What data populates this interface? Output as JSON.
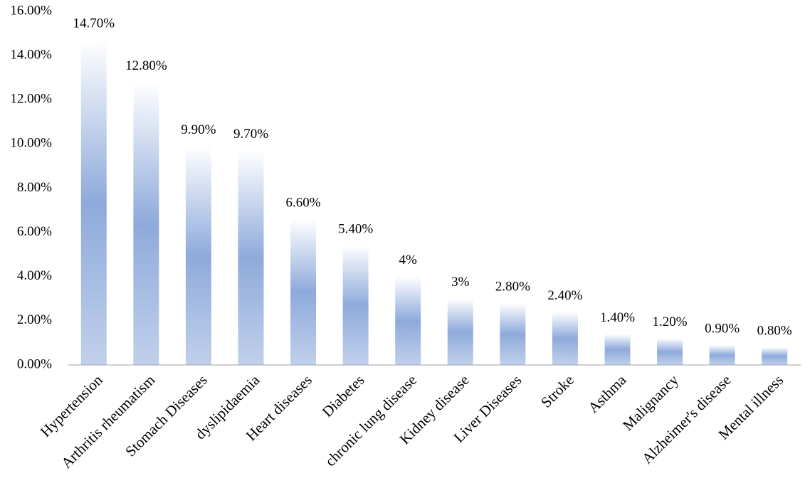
{
  "chart_data": {
    "type": "bar",
    "categories": [
      "Hypertension",
      "Arthritis rheumatism",
      "Stomach Diseases",
      "dyslipidaemia",
      "Heart diseases",
      "Diabetes",
      "chronic lung disease",
      "Kidney disease",
      "Liver Diseases",
      "Stroke",
      "Asthma",
      "Malignancy",
      "Alzheimer's disease",
      "Mental illness"
    ],
    "values": [
      14.7,
      12.8,
      9.9,
      9.7,
      6.6,
      5.4,
      4,
      3,
      2.8,
      2.4,
      1.4,
      1.2,
      0.9,
      0.8
    ],
    "value_labels": [
      "14.70%",
      "12.80%",
      "9.90%",
      "9.70%",
      "6.60%",
      "5.40%",
      "4%",
      "3%",
      "2.80%",
      "2.40%",
      "1.40%",
      "1.20%",
      "0.90%",
      "0.80%"
    ],
    "color": "#8eaadb",
    "ylim": [
      0,
      16
    ],
    "yticks": [
      {
        "value": 0,
        "label": "0.00%"
      },
      {
        "value": 2,
        "label": "2.00%"
      },
      {
        "value": 4,
        "label": "4.00%"
      },
      {
        "value": 6,
        "label": "6.00%"
      },
      {
        "value": 8,
        "label": "8.00%"
      },
      {
        "value": 10,
        "label": "10.00%"
      },
      {
        "value": 12,
        "label": "12.00%"
      },
      {
        "value": 14,
        "label": "14.00%"
      },
      {
        "value": 16,
        "label": "16.00%"
      }
    ],
    "grid": false
  }
}
